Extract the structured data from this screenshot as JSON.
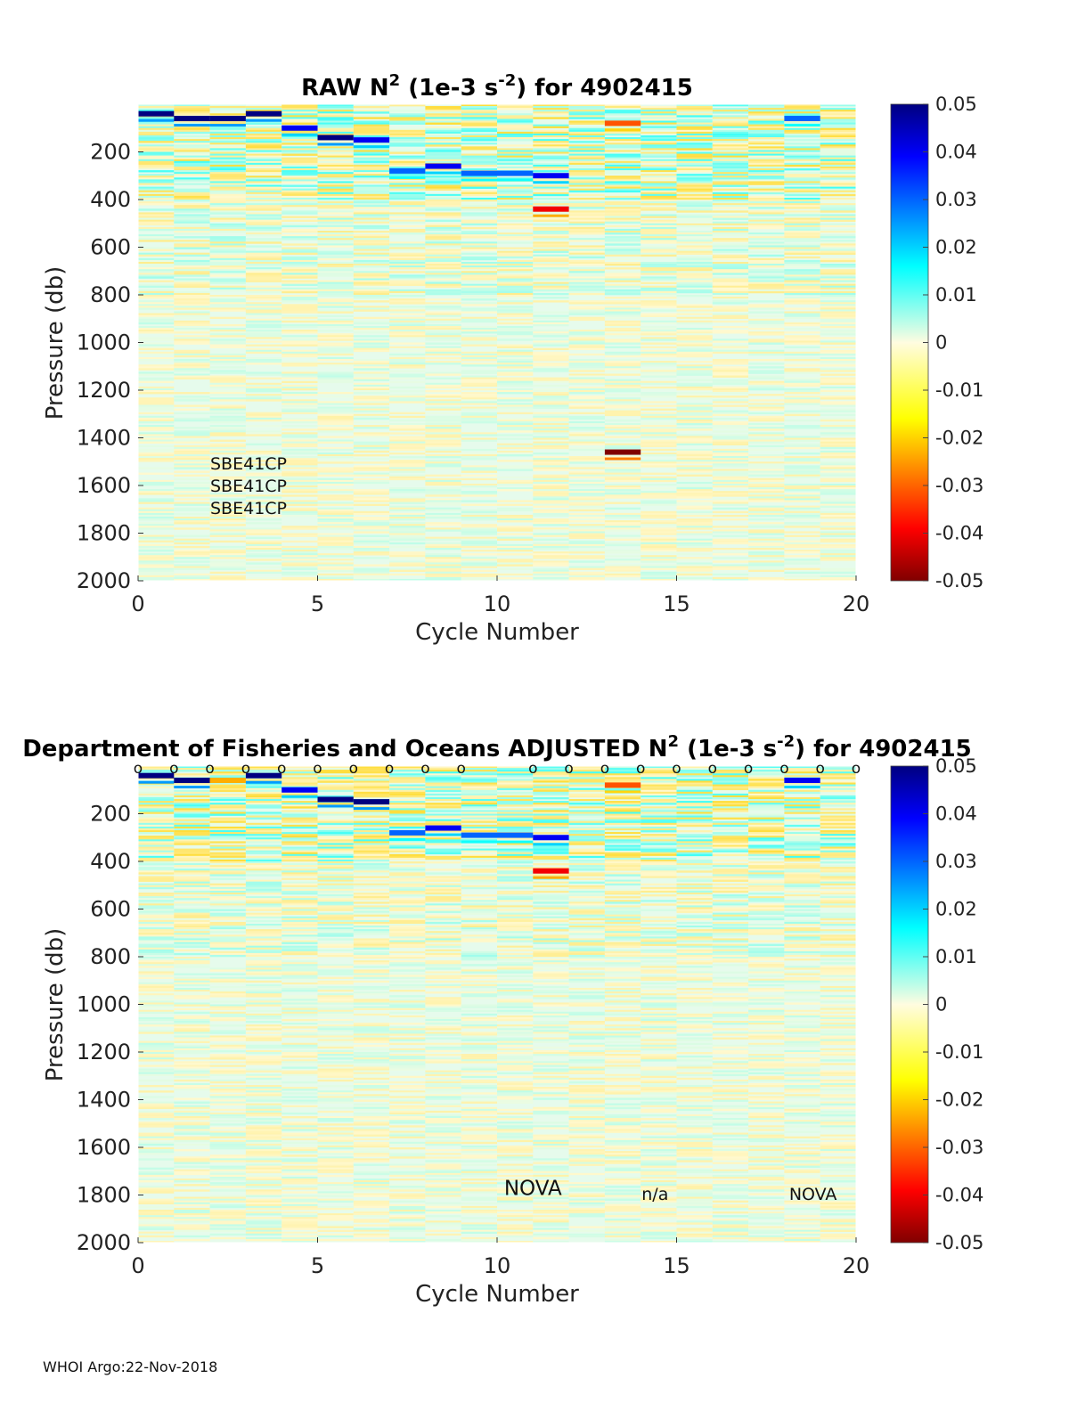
{
  "chart_data": [
    {
      "type": "heatmap",
      "title_main": "RAW N",
      "title_sup1": "2",
      "title_mid": " (1e-3 s",
      "title_sup2": "-2",
      "title_end": ") for 4902415",
      "xlabel": "Cycle Number",
      "ylabel": "Pressure (db)",
      "xlim": [
        0,
        20
      ],
      "ylim": [
        0,
        2000
      ],
      "y_reversed": true,
      "xticks": [
        "0",
        "5",
        "10",
        "15",
        "20"
      ],
      "yticks": [
        "200",
        "400",
        "600",
        "800",
        "1000",
        "1200",
        "1400",
        "1600",
        "1800",
        "2000"
      ],
      "colorbar": {
        "range": [
          -0.05,
          0.05
        ],
        "ticks": [
          "0.05",
          "0.04",
          "0.03",
          "0.02",
          "0.01",
          "0",
          "-0.01",
          "-0.02",
          "-0.03",
          "-0.04",
          "-0.05"
        ],
        "colormap": "jet"
      },
      "annotations": [
        "SBE41CP",
        "SBE41CP",
        "SBE41CP"
      ],
      "strong_features": [
        {
          "cycle": 0,
          "pressure": 40,
          "value": 0.05
        },
        {
          "cycle": 1,
          "pressure": 60,
          "value": 0.05
        },
        {
          "cycle": 2,
          "pressure": 60,
          "value": 0.05
        },
        {
          "cycle": 3,
          "pressure": 40,
          "value": 0.05
        },
        {
          "cycle": 4,
          "pressure": 100,
          "value": 0.04
        },
        {
          "cycle": 5,
          "pressure": 140,
          "value": 0.05
        },
        {
          "cycle": 6,
          "pressure": 150,
          "value": 0.04
        },
        {
          "cycle": 7,
          "pressure": 280,
          "value": 0.03
        },
        {
          "cycle": 8,
          "pressure": 260,
          "value": 0.04
        },
        {
          "cycle": 9,
          "pressure": 290,
          "value": 0.03
        },
        {
          "cycle": 10,
          "pressure": 290,
          "value": 0.03
        },
        {
          "cycle": 11,
          "pressure": 300,
          "value": 0.04
        },
        {
          "cycle": 11,
          "pressure": 440,
          "value": -0.04
        },
        {
          "cycle": 13,
          "pressure": 80,
          "value": -0.03
        },
        {
          "cycle": 13,
          "pressure": 1460,
          "value": -0.05
        },
        {
          "cycle": 18,
          "pressure": 60,
          "value": 0.03
        }
      ]
    },
    {
      "type": "heatmap",
      "title_main": "Department of Fisheries and Oceans  ADJUSTED N",
      "title_sup1": "2",
      "title_mid": " (1e-3 s",
      "title_sup2": "-2",
      "title_end": ") for 4902415",
      "xlabel": "Cycle Number",
      "ylabel": "Pressure (db)",
      "xlim": [
        0,
        20
      ],
      "ylim": [
        0,
        2000
      ],
      "y_reversed": true,
      "xticks": [
        "0",
        "5",
        "10",
        "15",
        "20"
      ],
      "yticks": [
        "200",
        "400",
        "600",
        "800",
        "1000",
        "1200",
        "1400",
        "1600",
        "1800",
        "2000"
      ],
      "colorbar": {
        "range": [
          -0.05,
          0.05
        ],
        "ticks": [
          "0.05",
          "0.04",
          "0.03",
          "0.02",
          "0.01",
          "0",
          "-0.01",
          "-0.02",
          "-0.03",
          "-0.04",
          "-0.05"
        ],
        "colormap": "jet"
      },
      "qc_marker": "o",
      "qc_marker_cycles": [
        0,
        1,
        2,
        3,
        4,
        5,
        6,
        7,
        8,
        9,
        11,
        12,
        13,
        14,
        15,
        16,
        17,
        18,
        19,
        20
      ],
      "annotations": [
        {
          "text": "NOVA",
          "cycle": 11,
          "pressure": 1800,
          "size": "large"
        },
        {
          "text": "n/a",
          "cycle": 14.4,
          "pressure": 1820,
          "size": "small"
        },
        {
          "text": "NOVA",
          "cycle": 18.8,
          "pressure": 1820,
          "size": "small"
        }
      ],
      "strong_features": [
        {
          "cycle": 0,
          "pressure": 40,
          "value": 0.05
        },
        {
          "cycle": 1,
          "pressure": 60,
          "value": 0.05
        },
        {
          "cycle": 2,
          "pressure": 60,
          "value": -0.02
        },
        {
          "cycle": 3,
          "pressure": 40,
          "value": 0.05
        },
        {
          "cycle": 4,
          "pressure": 100,
          "value": 0.04
        },
        {
          "cycle": 5,
          "pressure": 140,
          "value": 0.05
        },
        {
          "cycle": 6,
          "pressure": 150,
          "value": 0.05
        },
        {
          "cycle": 7,
          "pressure": 280,
          "value": 0.03
        },
        {
          "cycle": 8,
          "pressure": 260,
          "value": 0.04
        },
        {
          "cycle": 9,
          "pressure": 290,
          "value": 0.03
        },
        {
          "cycle": 10,
          "pressure": 290,
          "value": 0.03
        },
        {
          "cycle": 11,
          "pressure": 300,
          "value": 0.04
        },
        {
          "cycle": 11,
          "pressure": 440,
          "value": -0.04
        },
        {
          "cycle": 13,
          "pressure": 80,
          "value": -0.03
        },
        {
          "cycle": 18,
          "pressure": 60,
          "value": 0.04
        }
      ]
    }
  ],
  "footer": "WHOI Argo:22-Nov-2018"
}
